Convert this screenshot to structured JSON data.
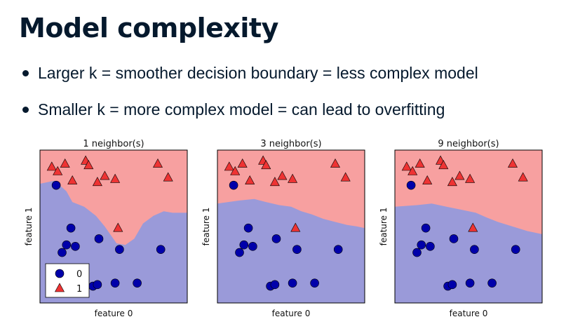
{
  "slide": {
    "title": "Model complexity",
    "bullets": [
      "Larger k = smoother decision boundary = less complex model",
      "Smaller k = more complex model = can lead to overfitting"
    ]
  },
  "colors": {
    "class0_region": "#9a9ad9",
    "class1_region": "#f7a0a0",
    "class0_marker": "#0000aa",
    "class1_marker": "#ee3333",
    "title_text": "#05192d"
  },
  "chart_data": [
    {
      "type": "scatter",
      "title": "1 neighbor(s)",
      "xlabel": "feature 0",
      "ylabel": "feature 1",
      "xlim": [
        0,
        100
      ],
      "ylim": [
        0,
        100
      ],
      "legend": {
        "placement": "bottom-left",
        "entries": [
          "0",
          "1"
        ]
      },
      "boundary": [
        [
          0,
          78
        ],
        [
          10,
          80
        ],
        [
          18,
          73
        ],
        [
          22,
          66
        ],
        [
          30,
          63
        ],
        [
          38,
          57
        ],
        [
          44,
          50
        ],
        [
          52,
          39
        ],
        [
          58,
          38
        ],
        [
          64,
          42
        ],
        [
          70,
          52
        ],
        [
          77,
          57
        ],
        [
          84,
          60
        ],
        [
          90,
          59
        ],
        [
          100,
          59
        ]
      ],
      "series": [
        {
          "name": "0",
          "marker": "circle",
          "points": [
            [
              11,
              77
            ],
            [
              21,
              49
            ],
            [
              18,
              38
            ],
            [
              24,
              37
            ],
            [
              15,
              33
            ],
            [
              40,
              42
            ],
            [
              54,
              35
            ],
            [
              82,
              35
            ],
            [
              51,
              13
            ],
            [
              36,
              11
            ],
            [
              39,
              12
            ],
            [
              66,
              13
            ]
          ]
        },
        {
          "name": "1",
          "marker": "triangle",
          "points": [
            [
              8,
              89
            ],
            [
              17,
              91
            ],
            [
              12,
              86
            ],
            [
              31,
              93
            ],
            [
              33,
              90
            ],
            [
              22,
              80
            ],
            [
              39,
              79
            ],
            [
              44,
              83
            ],
            [
              51,
              81
            ],
            [
              80,
              91
            ],
            [
              87,
              82
            ],
            [
              53,
              49
            ]
          ]
        }
      ]
    },
    {
      "type": "scatter",
      "title": "3 neighbor(s)",
      "xlabel": "feature 0",
      "ylabel": "feature 1",
      "xlim": [
        0,
        100
      ],
      "ylim": [
        0,
        100
      ],
      "boundary": [
        [
          0,
          65
        ],
        [
          15,
          67
        ],
        [
          25,
          68
        ],
        [
          33,
          66
        ],
        [
          42,
          64
        ],
        [
          50,
          63
        ],
        [
          57,
          60
        ],
        [
          64,
          58
        ],
        [
          72,
          55
        ],
        [
          80,
          53
        ],
        [
          88,
          51
        ],
        [
          95,
          50
        ],
        [
          100,
          49
        ]
      ],
      "series": [
        {
          "name": "0",
          "marker": "circle",
          "points": [
            [
              11,
              77
            ],
            [
              21,
              49
            ],
            [
              18,
              38
            ],
            [
              24,
              37
            ],
            [
              15,
              33
            ],
            [
              40,
              42
            ],
            [
              54,
              35
            ],
            [
              82,
              35
            ],
            [
              51,
              13
            ],
            [
              36,
              11
            ],
            [
              39,
              12
            ],
            [
              66,
              13
            ]
          ]
        },
        {
          "name": "1",
          "marker": "triangle",
          "points": [
            [
              8,
              89
            ],
            [
              17,
              91
            ],
            [
              12,
              86
            ],
            [
              31,
              93
            ],
            [
              33,
              90
            ],
            [
              22,
              80
            ],
            [
              39,
              79
            ],
            [
              44,
              83
            ],
            [
              51,
              81
            ],
            [
              80,
              91
            ],
            [
              87,
              82
            ],
            [
              53,
              49
            ]
          ]
        }
      ]
    },
    {
      "type": "scatter",
      "title": "9 neighbor(s)",
      "xlabel": "feature 0",
      "ylabel": "feature 1",
      "xlim": [
        0,
        100
      ],
      "ylim": [
        0,
        100
      ],
      "boundary": [
        [
          0,
          63
        ],
        [
          15,
          64
        ],
        [
          25,
          65
        ],
        [
          35,
          63
        ],
        [
          45,
          61
        ],
        [
          55,
          59
        ],
        [
          62,
          56
        ],
        [
          70,
          53
        ],
        [
          80,
          50
        ],
        [
          90,
          47
        ],
        [
          100,
          45
        ]
      ],
      "series": [
        {
          "name": "0",
          "marker": "circle",
          "points": [
            [
              11,
              77
            ],
            [
              21,
              49
            ],
            [
              18,
              38
            ],
            [
              24,
              37
            ],
            [
              15,
              33
            ],
            [
              40,
              42
            ],
            [
              54,
              35
            ],
            [
              82,
              35
            ],
            [
              51,
              13
            ],
            [
              36,
              11
            ],
            [
              39,
              12
            ],
            [
              66,
              13
            ]
          ]
        },
        {
          "name": "1",
          "marker": "triangle",
          "points": [
            [
              8,
              89
            ],
            [
              17,
              91
            ],
            [
              12,
              86
            ],
            [
              31,
              93
            ],
            [
              33,
              90
            ],
            [
              22,
              80
            ],
            [
              39,
              79
            ],
            [
              44,
              83
            ],
            [
              51,
              81
            ],
            [
              80,
              91
            ],
            [
              87,
              82
            ],
            [
              53,
              49
            ]
          ]
        }
      ]
    }
  ]
}
